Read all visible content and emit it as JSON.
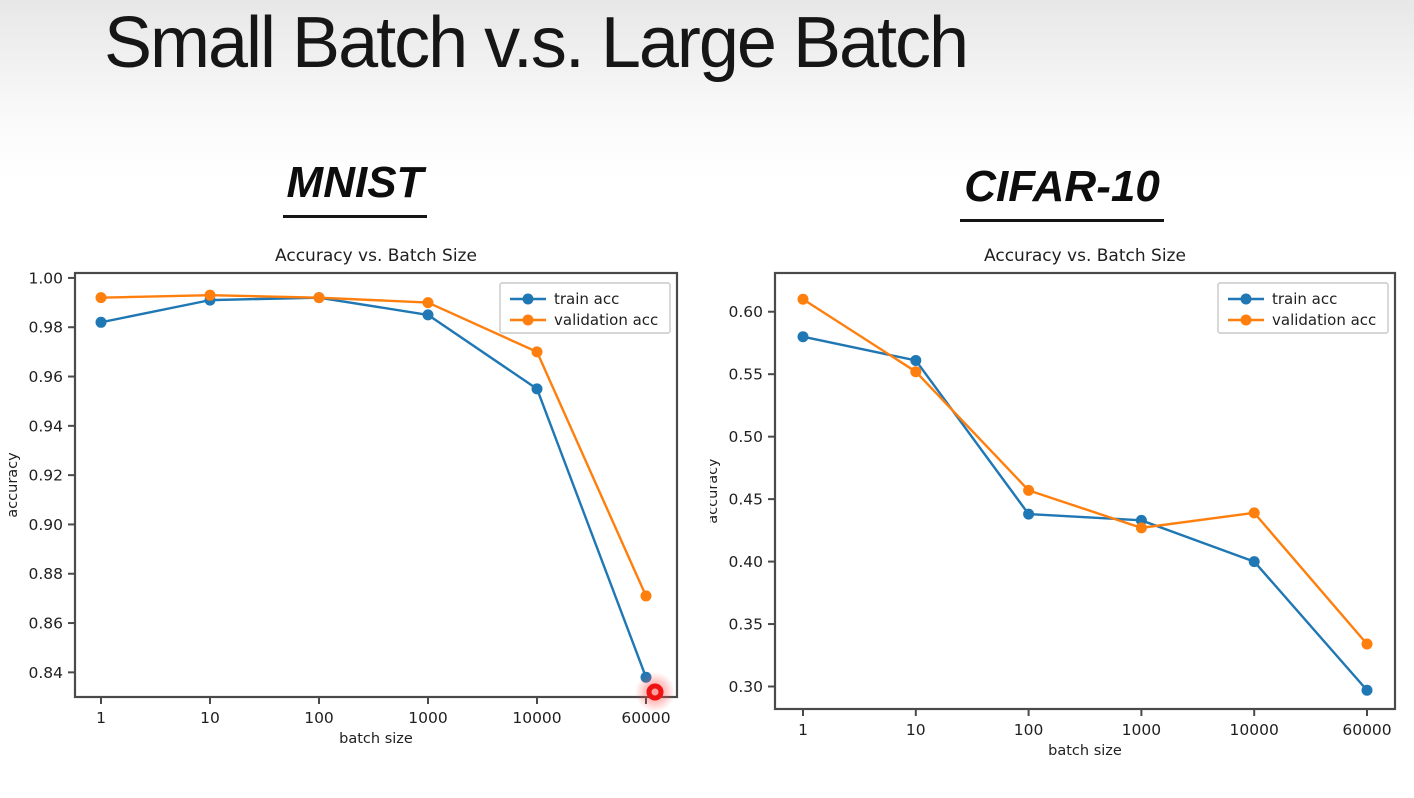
{
  "slide": {
    "title": "Small Batch v.s. Large Batch"
  },
  "colors": {
    "train": "#1f77b4",
    "validation": "#ff7f0e",
    "highlight_red": "#ee1212",
    "axis_frame": "#4a4a4a",
    "text": "#1f1f1f"
  },
  "chart_data": [
    {
      "id": "mnist",
      "slide_heading": "MNIST",
      "type": "line",
      "title": "Accuracy vs. Batch Size",
      "xlabel": "batch size",
      "ylabel": "accuracy",
      "x_spacing": "equal-categorical",
      "categories": [
        "1",
        "10",
        "100",
        "1000",
        "10000",
        "60000"
      ],
      "y_ticks": [
        0.84,
        0.86,
        0.88,
        0.9,
        0.92,
        0.94,
        0.96,
        0.98,
        1.0
      ],
      "y_tick_labels": [
        "0.84",
        "0.86",
        "0.88",
        "0.90",
        "0.92",
        "0.94",
        "0.96",
        "0.98",
        "1.00"
      ],
      "ylim": [
        0.83,
        1.002
      ],
      "grid": false,
      "legend_position": "upper right",
      "series": [
        {
          "name": "train acc",
          "color": "#1f77b4",
          "values": [
            0.982,
            0.991,
            0.992,
            0.985,
            0.955,
            0.838
          ]
        },
        {
          "name": "validation acc",
          "color": "#ff7f0e",
          "values": [
            0.992,
            0.993,
            0.992,
            0.99,
            0.97,
            0.871
          ]
        }
      ],
      "annotation": {
        "type": "red-ring-highlight",
        "category": "60000",
        "position": "on x-axis below last train point"
      }
    },
    {
      "id": "cifar10",
      "slide_heading": "CIFAR-10",
      "type": "line",
      "title": "Accuracy vs. Batch Size",
      "xlabel": "batch size",
      "ylabel": "accuracy",
      "x_spacing": "equal-categorical",
      "categories": [
        "1",
        "10",
        "100",
        "1000",
        "10000",
        "60000"
      ],
      "y_ticks": [
        0.3,
        0.35,
        0.4,
        0.45,
        0.5,
        0.55,
        0.6
      ],
      "y_tick_labels": [
        "0.30",
        "0.35",
        "0.40",
        "0.45",
        "0.50",
        "0.55",
        "0.60"
      ],
      "ylim": [
        0.282,
        0.631
      ],
      "grid": false,
      "legend_position": "upper right",
      "series": [
        {
          "name": "train acc",
          "color": "#1f77b4",
          "values": [
            0.58,
            0.561,
            0.438,
            0.433,
            0.4,
            0.297
          ]
        },
        {
          "name": "validation acc",
          "color": "#ff7f0e",
          "values": [
            0.61,
            0.552,
            0.457,
            0.427,
            0.439,
            0.334
          ]
        }
      ],
      "annotation": null
    }
  ]
}
